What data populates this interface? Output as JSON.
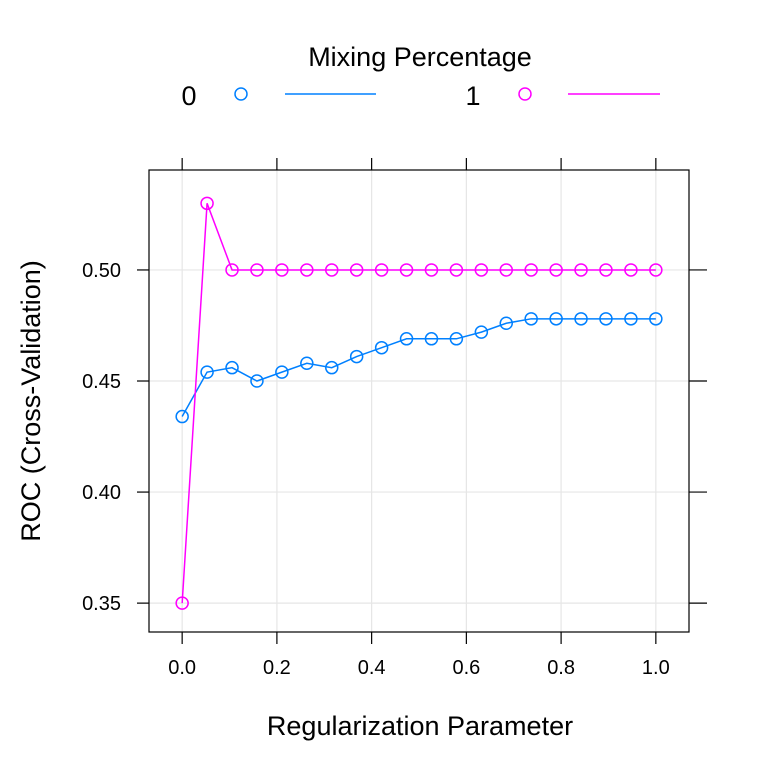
{
  "chart_data": {
    "type": "line",
    "title": "",
    "xlabel": "Regularization Parameter",
    "ylabel": "ROC (Cross-Validation)",
    "legend": {
      "title": "Mixing Percentage",
      "placement": "top"
    },
    "xlim": [
      -0.07,
      1.07
    ],
    "ylim": [
      0.337,
      0.545
    ],
    "x_ticks": [
      "0.0",
      "0.2",
      "0.4",
      "0.6",
      "0.8",
      "1.0"
    ],
    "y_ticks": [
      "0.35",
      "0.40",
      "0.45",
      "0.50"
    ],
    "grid": true,
    "x": [
      0.0,
      0.0526,
      0.1053,
      0.1579,
      0.2105,
      0.2632,
      0.3158,
      0.3684,
      0.4211,
      0.4737,
      0.5263,
      0.5789,
      0.6316,
      0.6842,
      0.7368,
      0.7895,
      0.8421,
      0.8947,
      0.9474,
      1.0
    ],
    "series": [
      {
        "name": "0",
        "color": "#0080ff",
        "values": [
          0.434,
          0.454,
          0.456,
          0.45,
          0.454,
          0.458,
          0.456,
          0.461,
          0.465,
          0.469,
          0.469,
          0.469,
          0.472,
          0.476,
          0.478,
          0.478,
          0.478,
          0.478,
          0.478,
          0.478
        ]
      },
      {
        "name": "1",
        "color": "#ff00ff",
        "values": [
          0.35,
          0.53,
          0.5,
          0.5,
          0.5,
          0.5,
          0.5,
          0.5,
          0.5,
          0.5,
          0.5,
          0.5,
          0.5,
          0.5,
          0.5,
          0.5,
          0.5,
          0.5,
          0.5,
          0.5
        ]
      }
    ]
  }
}
